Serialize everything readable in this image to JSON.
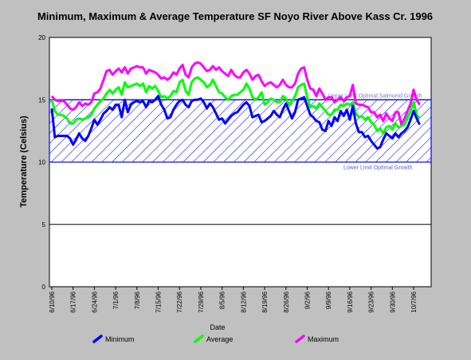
{
  "chart_data": {
    "type": "line",
    "title": "Minimum, Maximum & Average Temperature SF Noyo River Above Kass Cr. 1996",
    "xlabel": "Date",
    "ylabel": "Temperature (Celsius)",
    "ylim": [
      0,
      20
    ],
    "yticks": [
      0,
      5,
      10,
      15,
      20
    ],
    "x_start": "6/10/96",
    "x_end": "10/9/96",
    "x_tick_labels": [
      "6/10/96",
      "6/17/96",
      "6/24/96",
      "7/1/96",
      "7/8/96",
      "7/15/96",
      "7/22/96",
      "7/29/96",
      "8/5/96",
      "8/12/96",
      "8/19/96",
      "8/26/96",
      "9/2/96",
      "9/9/96",
      "9/16/96",
      "9/23/96",
      "9/30/96",
      "10/7/96"
    ],
    "grid": "horizontal",
    "legend_position": "bottom",
    "optimal_band": {
      "lower": 10,
      "upper": 15,
      "lower_label": "Lower Limit Optimal Growth",
      "upper_label": "Upper Limit Optimal Salmonid Growth",
      "color": "#0000ff"
    },
    "x": [
      "6/10/96",
      "6/11/96",
      "6/12/96",
      "6/13/96",
      "6/14/96",
      "6/15/96",
      "6/16/96",
      "6/17/96",
      "6/18/96",
      "6/19/96",
      "6/20/96",
      "6/21/96",
      "6/22/96",
      "6/23/96",
      "6/24/96",
      "6/25/96",
      "6/26/96",
      "6/27/96",
      "6/28/96",
      "6/29/96",
      "6/30/96",
      "7/1/96",
      "7/2/96",
      "7/3/96",
      "7/4/96",
      "7/5/96",
      "7/6/96",
      "7/7/96",
      "7/8/96",
      "7/9/96",
      "7/10/96",
      "7/11/96",
      "7/12/96",
      "7/13/96",
      "7/14/96",
      "7/15/96",
      "7/16/96",
      "7/17/96",
      "7/18/96",
      "7/19/96",
      "7/20/96",
      "7/21/96",
      "7/22/96",
      "7/23/96",
      "7/24/96",
      "7/25/96",
      "7/26/96",
      "7/27/96",
      "7/28/96",
      "7/29/96",
      "7/30/96",
      "7/31/96",
      "8/1/96",
      "8/2/96",
      "8/3/96",
      "8/4/96",
      "8/5/96",
      "8/6/96",
      "8/7/96",
      "8/8/96",
      "8/9/96",
      "8/10/96",
      "8/11/96",
      "8/12/96",
      "8/13/96",
      "8/14/96",
      "8/15/96",
      "8/16/96",
      "8/17/96",
      "8/18/96",
      "8/19/96",
      "8/20/96",
      "8/21/96",
      "8/22/96",
      "8/23/96",
      "8/24/96",
      "8/25/96",
      "8/26/96",
      "8/27/96",
      "8/28/96",
      "8/29/96",
      "8/30/96",
      "8/31/96",
      "9/1/96",
      "9/2/96",
      "9/3/96",
      "9/4/96",
      "9/5/96",
      "9/6/96",
      "9/7/96",
      "9/8/96",
      "9/9/96",
      "9/10/96",
      "9/11/96",
      "9/12/96",
      "9/13/96",
      "9/14/96",
      "9/15/96",
      "9/16/96",
      "9/17/96",
      "9/18/96",
      "9/19/96",
      "9/20/96",
      "9/21/96",
      "9/22/96",
      "9/23/96",
      "9/24/96",
      "9/25/96",
      "9/26/96",
      "9/27/96",
      "9/28/96",
      "9/29/96",
      "9/30/96",
      "10/1/96",
      "10/2/96",
      "10/3/96",
      "10/4/96",
      "10/5/96",
      "10/6/96",
      "10/7/96",
      "10/8/96",
      "10/9/96"
    ],
    "series": [
      {
        "name": "Maximum",
        "color": "#ff00ff",
        "values": [
          15.3,
          15.0,
          14.9,
          14.9,
          14.9,
          14.6,
          14.3,
          14.2,
          14.4,
          14.8,
          14.5,
          14.7,
          14.6,
          14.8,
          15.5,
          15.6,
          15.9,
          16.6,
          17.3,
          17.4,
          17.0,
          17.3,
          17.5,
          17.2,
          17.6,
          17.1,
          17.5,
          17.6,
          17.7,
          17.6,
          17.6,
          17.1,
          17.4,
          17.3,
          17.2,
          17.0,
          16.7,
          16.8,
          16.6,
          16.8,
          17.2,
          17.0,
          17.5,
          17.8,
          17.0,
          16.8,
          17.6,
          17.9,
          18.0,
          17.9,
          17.6,
          17.3,
          17.4,
          17.7,
          17.4,
          17.6,
          17.3,
          17.1,
          16.9,
          17.4,
          17.0,
          16.8,
          16.8,
          17.2,
          17.4,
          17.1,
          16.6,
          16.9,
          17.0,
          16.5,
          16.1,
          16.3,
          16.4,
          16.2,
          16.0,
          16.2,
          16.6,
          16.2,
          16.0,
          16.0,
          16.3,
          17.1,
          17.5,
          17.6,
          16.6,
          15.9,
          15.8,
          15.3,
          15.9,
          15.5,
          15.0,
          15.2,
          15.2,
          14.8,
          15.0,
          15.2,
          14.9,
          15.2,
          15.3,
          16.2,
          14.7,
          14.6,
          14.6,
          14.5,
          14.4,
          14.0,
          14.0,
          13.6,
          13.8,
          13.3,
          13.9,
          13.5,
          13.3,
          14.0,
          14.0,
          13.0,
          13.5,
          14.1,
          14.7,
          15.8,
          15.0,
          14.6
        ]
      },
      {
        "name": "Average",
        "color": "#00ff00",
        "values": [
          15.0,
          14.1,
          13.8,
          13.8,
          13.7,
          13.5,
          13.1,
          13.1,
          13.4,
          13.5,
          13.4,
          13.5,
          13.6,
          13.8,
          14.3,
          14.6,
          14.9,
          15.1,
          15.5,
          15.8,
          15.5,
          15.8,
          16.0,
          15.4,
          16.4,
          16.0,
          16.1,
          16.2,
          16.3,
          16.1,
          16.3,
          15.6,
          16.1,
          15.9,
          16.1,
          15.7,
          15.2,
          15.3,
          15.1,
          15.3,
          15.7,
          15.6,
          16.4,
          16.6,
          15.7,
          15.4,
          16.4,
          16.7,
          16.8,
          16.6,
          16.4,
          16.0,
          16.2,
          16.6,
          16.1,
          15.6,
          15.5,
          15.2,
          15.0,
          15.3,
          15.4,
          15.4,
          15.6,
          15.8,
          16.3,
          15.9,
          15.2,
          15.0,
          15.2,
          15.6,
          14.6,
          14.8,
          15.1,
          15.0,
          14.8,
          14.8,
          15.3,
          15.1,
          14.6,
          14.9,
          15.3,
          16.0,
          16.2,
          16.3,
          15.2,
          14.4,
          14.5,
          14.3,
          14.7,
          14.4,
          14.1,
          13.8,
          13.8,
          14.2,
          14.2,
          14.6,
          14.5,
          14.7,
          14.6,
          14.8,
          13.9,
          13.6,
          13.7,
          13.4,
          13.6,
          13.2,
          13.0,
          12.5,
          12.7,
          12.3,
          12.8,
          12.9,
          12.6,
          13.1,
          12.8,
          12.9,
          13.0,
          13.6,
          14.1,
          14.8,
          13.8,
          13.5
        ]
      },
      {
        "name": "Minimum",
        "color": "#0000ff",
        "values": [
          14.3,
          12.0,
          12.1,
          12.1,
          12.1,
          12.1,
          11.9,
          11.4,
          11.8,
          12.3,
          11.9,
          11.7,
          12.1,
          12.7,
          13.4,
          13.0,
          13.4,
          13.9,
          14.1,
          14.4,
          14.2,
          14.6,
          14.6,
          13.6,
          15.0,
          14.0,
          14.6,
          14.8,
          14.9,
          14.8,
          14.9,
          14.4,
          14.9,
          14.8,
          15.0,
          15.3,
          14.6,
          14.2,
          13.5,
          13.6,
          14.2,
          14.6,
          14.9,
          15.0,
          14.6,
          14.4,
          14.9,
          15.0,
          15.0,
          15.1,
          14.8,
          14.3,
          14.7,
          14.4,
          13.9,
          13.4,
          13.5,
          13.1,
          13.4,
          13.7,
          13.9,
          14.0,
          14.3,
          14.6,
          14.8,
          14.5,
          13.6,
          13.7,
          13.8,
          13.2,
          13.3,
          13.5,
          13.7,
          14.1,
          13.8,
          13.6,
          14.2,
          14.7,
          14.1,
          13.5,
          14.0,
          15.0,
          15.1,
          15.2,
          14.5,
          13.8,
          13.6,
          13.3,
          13.2,
          12.6,
          12.5,
          13.3,
          12.9,
          13.6,
          13.3,
          14.1,
          13.7,
          14.2,
          13.4,
          14.5,
          13.1,
          12.4,
          12.4,
          12.0,
          12.1,
          11.7,
          11.4,
          11.1,
          11.2,
          11.8,
          12.3,
          12.1,
          11.9,
          12.3,
          12.0,
          12.3,
          12.5,
          12.8,
          13.4,
          14.1,
          13.5,
          13.0
        ]
      }
    ]
  }
}
